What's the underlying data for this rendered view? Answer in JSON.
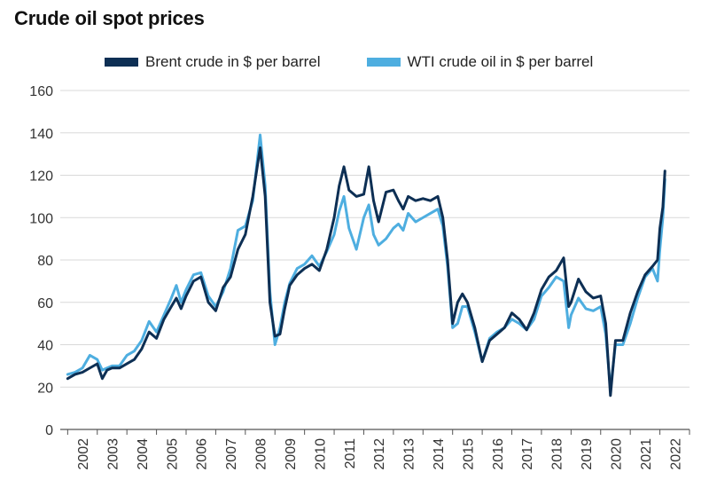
{
  "chart_data": {
    "type": "line",
    "title": "Crude oil spot prices",
    "xlabel": "",
    "ylabel": "",
    "ylim": [
      0,
      160
    ],
    "xlim": [
      2001.75,
      2023.0
    ],
    "yticks": [
      "0",
      "20",
      "40",
      "60",
      "80",
      "100",
      "120",
      "140",
      "160"
    ],
    "xticks": [
      "2002",
      "2003",
      "2004",
      "2005",
      "2006",
      "2007",
      "2008",
      "2009",
      "2010",
      "2011",
      "2012",
      "2013",
      "2014",
      "2015",
      "2016",
      "2017",
      "2018",
      "2019",
      "2020",
      "2021",
      "2022"
    ],
    "grid": "horizontal",
    "legend_position": "top",
    "series": [
      {
        "name": "Brent crude in $ per barrel",
        "color": "#0d2f54",
        "x": [
          2002.0,
          2002.25,
          2002.5,
          2002.75,
          2003.0,
          2003.17,
          2003.33,
          2003.5,
          2003.75,
          2004.0,
          2004.25,
          2004.5,
          2004.75,
          2005.0,
          2005.25,
          2005.5,
          2005.67,
          2005.83,
          2006.0,
          2006.25,
          2006.5,
          2006.75,
          2007.0,
          2007.25,
          2007.5,
          2007.75,
          2008.0,
          2008.25,
          2008.5,
          2008.67,
          2008.83,
          2009.0,
          2009.17,
          2009.33,
          2009.5,
          2009.75,
          2010.0,
          2010.25,
          2010.5,
          2010.75,
          2011.0,
          2011.17,
          2011.33,
          2011.5,
          2011.75,
          2012.0,
          2012.17,
          2012.33,
          2012.5,
          2012.75,
          2013.0,
          2013.17,
          2013.33,
          2013.5,
          2013.75,
          2014.0,
          2014.25,
          2014.5,
          2014.67,
          2014.83,
          2015.0,
          2015.17,
          2015.33,
          2015.5,
          2015.75,
          2016.0,
          2016.25,
          2016.5,
          2016.75,
          2017.0,
          2017.25,
          2017.5,
          2017.75,
          2018.0,
          2018.25,
          2018.5,
          2018.75,
          2018.92,
          2019.0,
          2019.25,
          2019.5,
          2019.75,
          2020.0,
          2020.17,
          2020.33,
          2020.5,
          2020.75,
          2021.0,
          2021.25,
          2021.5,
          2021.75,
          2021.92,
          2022.0,
          2022.1,
          2022.17
        ],
        "values": [
          24,
          26,
          27,
          29,
          31,
          24,
          28,
          29,
          29,
          31,
          33,
          38,
          46,
          43,
          52,
          58,
          62,
          57,
          63,
          70,
          72,
          60,
          56,
          67,
          72,
          85,
          92,
          110,
          133,
          110,
          60,
          44,
          45,
          57,
          68,
          73,
          76,
          78,
          75,
          85,
          100,
          115,
          124,
          113,
          110,
          111,
          124,
          108,
          98,
          112,
          113,
          108,
          104,
          110,
          108,
          109,
          108,
          110,
          100,
          80,
          50,
          60,
          64,
          60,
          48,
          32,
          42,
          45,
          48,
          55,
          52,
          47,
          55,
          66,
          72,
          75,
          81,
          58,
          60,
          71,
          65,
          62,
          63,
          50,
          16,
          42,
          42,
          55,
          65,
          73,
          77,
          80,
          95,
          105,
          122
        ]
      },
      {
        "name": "WTI crude oil in $ per barrel",
        "color": "#4eaee0",
        "x": [
          2002.0,
          2002.25,
          2002.5,
          2002.75,
          2003.0,
          2003.17,
          2003.33,
          2003.5,
          2003.75,
          2004.0,
          2004.25,
          2004.5,
          2004.75,
          2005.0,
          2005.25,
          2005.5,
          2005.67,
          2005.83,
          2006.0,
          2006.25,
          2006.5,
          2006.75,
          2007.0,
          2007.25,
          2007.5,
          2007.75,
          2008.0,
          2008.25,
          2008.5,
          2008.67,
          2008.83,
          2009.0,
          2009.17,
          2009.33,
          2009.5,
          2009.75,
          2010.0,
          2010.25,
          2010.5,
          2010.75,
          2011.0,
          2011.17,
          2011.33,
          2011.5,
          2011.75,
          2012.0,
          2012.17,
          2012.33,
          2012.5,
          2012.75,
          2013.0,
          2013.17,
          2013.33,
          2013.5,
          2013.75,
          2014.0,
          2014.25,
          2014.5,
          2014.67,
          2014.83,
          2015.0,
          2015.17,
          2015.33,
          2015.5,
          2015.75,
          2016.0,
          2016.25,
          2016.5,
          2016.75,
          2017.0,
          2017.25,
          2017.5,
          2017.75,
          2018.0,
          2018.25,
          2018.5,
          2018.75,
          2018.92,
          2019.0,
          2019.25,
          2019.5,
          2019.75,
          2020.0,
          2020.17,
          2020.33,
          2020.5,
          2020.75,
          2021.0,
          2021.25,
          2021.5,
          2021.75,
          2021.92,
          2022.0,
          2022.1,
          2022.17
        ],
        "values": [
          26,
          27,
          29,
          35,
          33,
          28,
          29,
          30,
          30,
          35,
          37,
          42,
          51,
          46,
          54,
          62,
          68,
          60,
          66,
          73,
          74,
          63,
          58,
          65,
          76,
          94,
          96,
          108,
          139,
          115,
          65,
          40,
          48,
          60,
          69,
          76,
          78,
          82,
          77,
          84,
          92,
          103,
          110,
          95,
          85,
          100,
          106,
          92,
          87,
          90,
          95,
          97,
          94,
          102,
          98,
          100,
          102,
          104,
          96,
          77,
          48,
          50,
          58,
          58,
          46,
          32,
          43,
          46,
          48,
          52,
          50,
          47,
          52,
          63,
          67,
          72,
          70,
          48,
          54,
          62,
          57,
          56,
          58,
          45,
          19,
          40,
          40,
          50,
          62,
          72,
          76,
          70,
          85,
          100,
          118
        ]
      }
    ]
  }
}
